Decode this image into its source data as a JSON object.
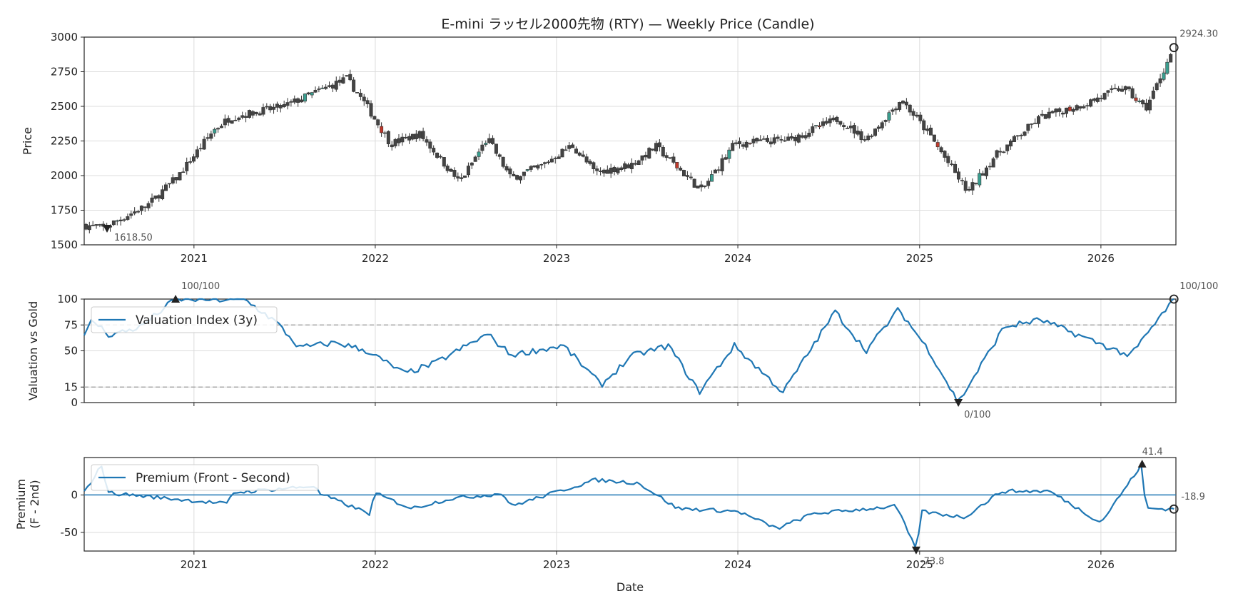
{
  "chart_data": [
    {
      "type": "candlestick",
      "title": "E-mini ラッセル2000先物 (RTY) — Weekly Price (Candle)",
      "ylabel": "Price",
      "ylim": [
        1500,
        3000
      ],
      "yticks": [
        1500,
        1750,
        2000,
        2250,
        2500,
        2750,
        3000
      ],
      "x_range": [
        "2020-05-25",
        "2026-06-01"
      ],
      "x_ticks": [
        "2021",
        "2022",
        "2023",
        "2024",
        "2025",
        "2026"
      ],
      "grid": true,
      "colors": {
        "up": "#3a9e8f",
        "down": "#c0392b",
        "body": "#444444"
      },
      "approx_weekly_close_anchors": [
        {
          "date": "2020-06-01",
          "close": 1640
        },
        {
          "date": "2020-07-01",
          "close": 1620
        },
        {
          "date": "2020-10-01",
          "close": 1790
        },
        {
          "date": "2020-12-01",
          "close": 2000
        },
        {
          "date": "2021-02-10",
          "close": 2330
        },
        {
          "date": "2021-03-15",
          "close": 2420
        },
        {
          "date": "2021-07-01",
          "close": 2500
        },
        {
          "date": "2021-11-05",
          "close": 2700
        },
        {
          "date": "2021-12-15",
          "close": 2500
        },
        {
          "date": "2022-02-01",
          "close": 2230
        },
        {
          "date": "2022-04-01",
          "close": 2300
        },
        {
          "date": "2022-06-20",
          "close": 1950
        },
        {
          "date": "2022-08-15",
          "close": 2270
        },
        {
          "date": "2022-10-01",
          "close": 1980
        },
        {
          "date": "2022-12-01",
          "close": 2070
        },
        {
          "date": "2023-02-01",
          "close": 2220
        },
        {
          "date": "2023-03-20",
          "close": 2020
        },
        {
          "date": "2023-06-01",
          "close": 2080
        },
        {
          "date": "2023-07-20",
          "close": 2210
        },
        {
          "date": "2023-10-20",
          "close": 1890
        },
        {
          "date": "2023-12-25",
          "close": 2230
        },
        {
          "date": "2024-04-15",
          "close": 2260
        },
        {
          "date": "2024-07-20",
          "close": 2410
        },
        {
          "date": "2024-09-15",
          "close": 2260
        },
        {
          "date": "2024-11-25",
          "close": 2550
        },
        {
          "date": "2025-01-20",
          "close": 2300
        },
        {
          "date": "2025-04-08",
          "close": 1880
        },
        {
          "date": "2025-06-01",
          "close": 2140
        },
        {
          "date": "2025-09-01",
          "close": 2420
        },
        {
          "date": "2025-12-01",
          "close": 2520
        },
        {
          "date": "2026-02-15",
          "close": 2640
        },
        {
          "date": "2026-04-01",
          "close": 2480
        },
        {
          "date": "2026-05-28",
          "close": 2924.3
        }
      ],
      "annotations": [
        {
          "label": "1618.50",
          "date": "2020-07-10",
          "value": 1618.5,
          "marker": "down-triangle"
        },
        {
          "label": "2924.30",
          "date": "2026-05-28",
          "value": 2924.3,
          "marker": "circle"
        }
      ]
    },
    {
      "type": "line",
      "ylabel": "Valuation vs Gold",
      "ylim": [
        0,
        100
      ],
      "yticks": [
        0,
        15,
        50,
        75,
        100
      ],
      "reference_lines": [
        15,
        75
      ],
      "legend": "top-left",
      "series": [
        {
          "name": "Valuation Index (3y)",
          "color": "#1f77b4",
          "approx_anchors": [
            {
              "date": "2020-05-25",
              "value": 63
            },
            {
              "date": "2020-06-10",
              "value": 80
            },
            {
              "date": "2020-07-15",
              "value": 65
            },
            {
              "date": "2020-09-15",
              "value": 73
            },
            {
              "date": "2020-11-25",
              "value": 100
            },
            {
              "date": "2021-04-15",
              "value": 99
            },
            {
              "date": "2021-06-15",
              "value": 78
            },
            {
              "date": "2021-08-01",
              "value": 53
            },
            {
              "date": "2021-10-15",
              "value": 58
            },
            {
              "date": "2021-12-15",
              "value": 50
            },
            {
              "date": "2022-03-01",
              "value": 28
            },
            {
              "date": "2022-05-01",
              "value": 38
            },
            {
              "date": "2022-08-15",
              "value": 66
            },
            {
              "date": "2022-10-01",
              "value": 46
            },
            {
              "date": "2023-01-15",
              "value": 55
            },
            {
              "date": "2023-04-01",
              "value": 17
            },
            {
              "date": "2023-06-01",
              "value": 45
            },
            {
              "date": "2023-08-15",
              "value": 55
            },
            {
              "date": "2023-10-15",
              "value": 10
            },
            {
              "date": "2023-12-25",
              "value": 55
            },
            {
              "date": "2024-04-01",
              "value": 10
            },
            {
              "date": "2024-07-15",
              "value": 88
            },
            {
              "date": "2024-09-15",
              "value": 50
            },
            {
              "date": "2024-11-20",
              "value": 90
            },
            {
              "date": "2025-01-20",
              "value": 50
            },
            {
              "date": "2025-03-20",
              "value": 0
            },
            {
              "date": "2025-06-20",
              "value": 73
            },
            {
              "date": "2025-09-01",
              "value": 80
            },
            {
              "date": "2026-03-01",
              "value": 45
            },
            {
              "date": "2026-05-28",
              "value": 100
            }
          ]
        }
      ],
      "annotations": [
        {
          "label": "100/100",
          "date": "2020-11-25",
          "value": 100,
          "marker": "up-triangle"
        },
        {
          "label": "0/100",
          "date": "2025-03-20",
          "value": 0,
          "marker": "down-triangle"
        },
        {
          "label": "100/100",
          "date": "2026-05-28",
          "value": 100,
          "marker": "circle"
        }
      ]
    },
    {
      "type": "line",
      "ylabel": "Premium\n(F - 2nd)",
      "xlabel": "Date",
      "ylim": [
        -75,
        50
      ],
      "yticks": [
        -50,
        0
      ],
      "x_ticks": [
        "2021",
        "2022",
        "2023",
        "2024",
        "2025",
        "2026"
      ],
      "reference_lines": [
        0
      ],
      "legend": "top-left",
      "series": [
        {
          "name": "Premium (Front - Second)",
          "color": "#1f77b4",
          "approx_anchors": [
            {
              "date": "2020-05-25",
              "value": 3
            },
            {
              "date": "2020-07-01",
              "value": 42
            },
            {
              "date": "2020-07-10",
              "value": 3
            },
            {
              "date": "2021-03-10",
              "value": -12
            },
            {
              "date": "2021-03-20",
              "value": 3
            },
            {
              "date": "2021-09-01",
              "value": 12
            },
            {
              "date": "2021-09-10",
              "value": 2
            },
            {
              "date": "2021-12-20",
              "value": -25
            },
            {
              "date": "2022-01-01",
              "value": 2
            },
            {
              "date": "2022-03-15",
              "value": -18
            },
            {
              "date": "2022-06-01",
              "value": -5
            },
            {
              "date": "2022-09-15",
              "value": 2
            },
            {
              "date": "2022-10-01",
              "value": -15
            },
            {
              "date": "2023-03-20",
              "value": 20
            },
            {
              "date": "2023-06-15",
              "value": 16
            },
            {
              "date": "2023-09-01",
              "value": -18
            },
            {
              "date": "2024-01-01",
              "value": -22
            },
            {
              "date": "2024-03-20",
              "value": -45
            },
            {
              "date": "2024-06-01",
              "value": -25
            },
            {
              "date": "2024-11-15",
              "value": -15
            },
            {
              "date": "2024-12-25",
              "value": -73.8
            },
            {
              "date": "2025-01-05",
              "value": -22
            },
            {
              "date": "2025-04-01",
              "value": -30
            },
            {
              "date": "2025-06-15",
              "value": 5
            },
            {
              "date": "2025-09-20",
              "value": 5
            },
            {
              "date": "2026-01-01",
              "value": -37
            },
            {
              "date": "2026-03-25",
              "value": 41.4
            },
            {
              "date": "2026-04-01",
              "value": -18
            },
            {
              "date": "2026-05-28",
              "value": -18.9
            }
          ]
        }
      ],
      "annotations": [
        {
          "label": "41.4",
          "date": "2026-03-25",
          "value": 41.4,
          "marker": "up-triangle"
        },
        {
          "label": "-73.8",
          "date": "2024-12-25",
          "value": -73.8,
          "marker": "down-triangle"
        },
        {
          "label": "-18.9",
          "date": "2026-05-28",
          "value": -18.9,
          "marker": "circle"
        }
      ]
    }
  ]
}
